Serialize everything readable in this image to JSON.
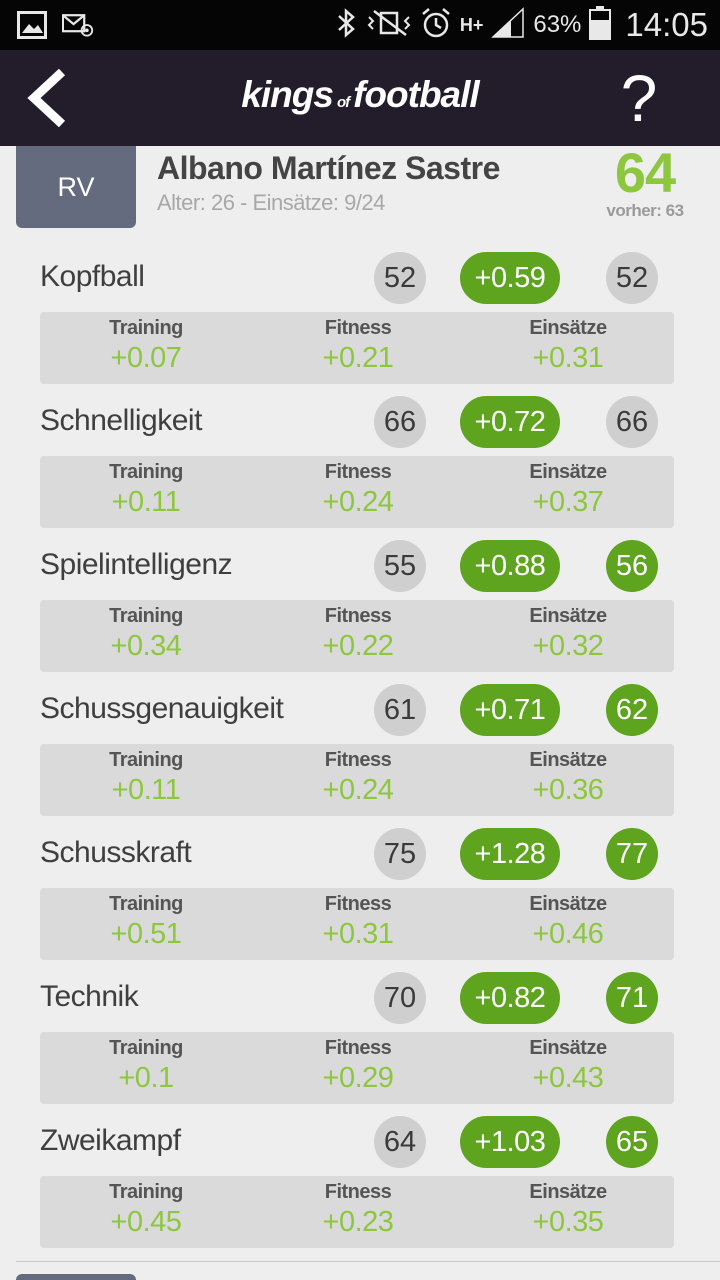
{
  "status_bar": {
    "battery": "63%",
    "network": "H+",
    "time": "14:05",
    "icons": [
      "gallery-icon",
      "email-icon",
      "bluetooth-icon",
      "vibrate-icon",
      "alarm-icon",
      "signal-icon",
      "battery-icon"
    ]
  },
  "app_bar": {
    "logo_left": "kings",
    "logo_mid": "of",
    "logo_right": "football",
    "help": "?"
  },
  "player": {
    "position": "RV",
    "name": "Albano Martínez Sastre",
    "subtitle": "Alter: 26 - Einsätze: 9/24",
    "rating": "64",
    "previous": "vorher: 63"
  },
  "labels": {
    "training": "Training",
    "fitness": "Fitness",
    "einsaetze": "Einsätze"
  },
  "attributes": [
    {
      "name": "Kopfball",
      "old": "52",
      "change": "+0.59",
      "new": "52",
      "new_up": false,
      "training": "+0.07",
      "fitness": "+0.21",
      "einsaetze": "+0.31"
    },
    {
      "name": "Schnelligkeit",
      "old": "66",
      "change": "+0.72",
      "new": "66",
      "new_up": false,
      "training": "+0.11",
      "fitness": "+0.24",
      "einsaetze": "+0.37"
    },
    {
      "name": "Spielintelligenz",
      "old": "55",
      "change": "+0.88",
      "new": "56",
      "new_up": true,
      "training": "+0.34",
      "fitness": "+0.22",
      "einsaetze": "+0.32"
    },
    {
      "name": "Schussgenauigkeit",
      "old": "61",
      "change": "+0.71",
      "new": "62",
      "new_up": true,
      "training": "+0.11",
      "fitness": "+0.24",
      "einsaetze": "+0.36"
    },
    {
      "name": "Schusskraft",
      "old": "75",
      "change": "+1.28",
      "new": "77",
      "new_up": true,
      "training": "+0.51",
      "fitness": "+0.31",
      "einsaetze": "+0.46"
    },
    {
      "name": "Technik",
      "old": "70",
      "change": "+0.82",
      "new": "71",
      "new_up": true,
      "training": "+0.1",
      "fitness": "+0.29",
      "einsaetze": "+0.43"
    },
    {
      "name": "Zweikampf",
      "old": "64",
      "change": "+1.03",
      "new": "65",
      "new_up": true,
      "training": "+0.45",
      "fitness": "+0.23",
      "einsaetze": "+0.35"
    }
  ],
  "colors": {
    "appbar": "#221c2b",
    "accent_green": "#5ea41e",
    "value_green": "#8dc63f",
    "badge": "#646b7f"
  }
}
